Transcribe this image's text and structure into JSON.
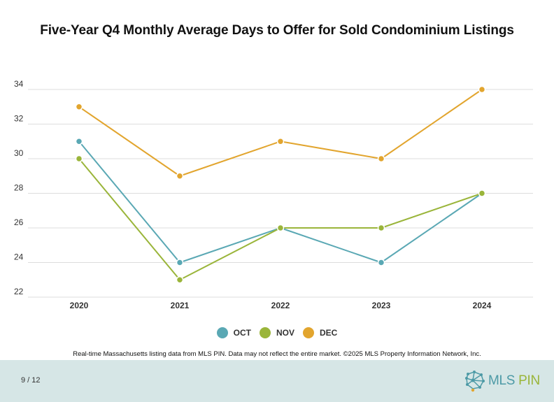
{
  "chart_data": {
    "type": "line",
    "title": "Five-Year Q4 Monthly Average Days to Offer for Sold Condominium Listings",
    "categories": [
      "2020",
      "2021",
      "2022",
      "2023",
      "2024"
    ],
    "y_ticks": [
      "22",
      "24",
      "26",
      "28",
      "30",
      "32",
      "34"
    ],
    "ylim": [
      22,
      34
    ],
    "grid": true,
    "legend_position": "bottom",
    "series": [
      {
        "name": "OCT",
        "color": "#5aa8b4",
        "values": [
          31,
          24,
          26,
          24,
          28
        ]
      },
      {
        "name": "NOV",
        "color": "#9ab53a",
        "values": [
          30,
          23,
          26,
          26,
          28
        ]
      },
      {
        "name": "DEC",
        "color": "#e2a52e",
        "values": [
          33,
          29,
          31,
          30,
          34
        ]
      }
    ]
  },
  "source_note": "Real-time Massachusetts listing data from MLS PIN. Data may not reflect the entire market. ©2025 MLS Property Information Network, Inc.",
  "footer": {
    "page_number": "9 / 12",
    "logo_text_a": "MLS",
    "logo_text_b": "PIN"
  }
}
